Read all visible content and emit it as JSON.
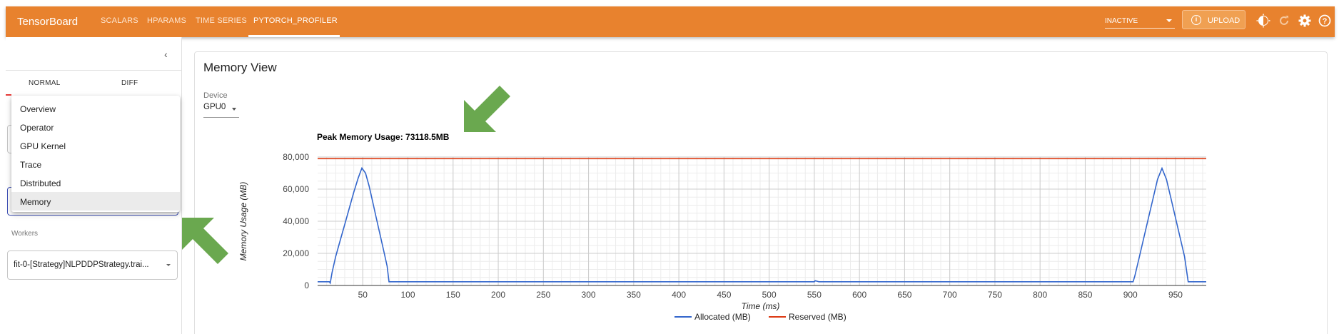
{
  "app": {
    "title": "TensorBoard",
    "tabs": [
      {
        "label": "SCALARS"
      },
      {
        "label": "HPARAMS"
      },
      {
        "label": "TIME SERIES"
      },
      {
        "label": "PYTORCH_PROFILER"
      }
    ],
    "run_status": "INACTIVE",
    "upload_label": "UPLOAD",
    "icons": [
      "theme-icon",
      "refresh-icon",
      "settings-icon",
      "help-icon"
    ]
  },
  "sidebar": {
    "mode_tabs": [
      {
        "label": "NORMAL"
      },
      {
        "label": "DIFF"
      }
    ],
    "views_dropdown": {
      "options": [
        {
          "label": "Overview"
        },
        {
          "label": "Operator"
        },
        {
          "label": "GPU Kernel"
        },
        {
          "label": "Trace"
        },
        {
          "label": "Distributed"
        },
        {
          "label": "Memory"
        }
      ],
      "selected": "Memory"
    },
    "workers_label": "Workers",
    "worker_value": "fit-0-[Strategy]NLPDDPStrategy.trai..."
  },
  "main": {
    "title": "Memory View",
    "device_label": "Device",
    "device_value": "GPU0"
  },
  "colors": {
    "accent": "#e8822e",
    "allocated": "#3366cc",
    "reserved": "#dc3912",
    "arrow": "#6aa84f"
  },
  "chart_data": {
    "type": "line",
    "title": "Peak Memory Usage: 73118.5MB",
    "xlabel": "Time (ms)",
    "ylabel": "Memory Usage (MB)",
    "xlim": [
      0,
      984
    ],
    "ylim": [
      0,
      80000
    ],
    "x_ticks": [
      50,
      100,
      150,
      200,
      250,
      300,
      350,
      400,
      450,
      500,
      550,
      600,
      650,
      700,
      750,
      800,
      850,
      900,
      950
    ],
    "y_ticks": [
      0,
      20000,
      40000,
      60000,
      80000
    ],
    "y_tick_labels": [
      "0",
      "20,000",
      "40,000",
      "60,000",
      "80,000"
    ],
    "grid": true,
    "legend": "bottom",
    "series": [
      {
        "name": "Allocated (MB)",
        "points": [
          [
            0,
            2300
          ],
          [
            13,
            2300
          ],
          [
            14,
            1500
          ],
          [
            16,
            8000
          ],
          [
            20,
            18000
          ],
          [
            25,
            28000
          ],
          [
            30,
            38000
          ],
          [
            35,
            48000
          ],
          [
            40,
            58000
          ],
          [
            45,
            67000
          ],
          [
            49,
            73118
          ],
          [
            53,
            70000
          ],
          [
            57,
            62000
          ],
          [
            61,
            52000
          ],
          [
            65,
            42000
          ],
          [
            69,
            32000
          ],
          [
            73,
            22000
          ],
          [
            77,
            12000
          ],
          [
            79,
            2300
          ],
          [
            520,
            2300
          ],
          [
            550,
            2300
          ],
          [
            551,
            3000
          ],
          [
            555,
            2300
          ],
          [
            903,
            2300
          ],
          [
            905,
            6000
          ],
          [
            910,
            18000
          ],
          [
            915,
            30000
          ],
          [
            920,
            42000
          ],
          [
            925,
            54000
          ],
          [
            930,
            66000
          ],
          [
            935,
            73000
          ],
          [
            940,
            66000
          ],
          [
            945,
            54000
          ],
          [
            950,
            42000
          ],
          [
            955,
            30000
          ],
          [
            960,
            18000
          ],
          [
            964,
            2300
          ],
          [
            984,
            2300
          ]
        ]
      },
      {
        "name": "Reserved (MB)",
        "points": [
          [
            0,
            79000
          ],
          [
            984,
            79000
          ]
        ]
      }
    ]
  }
}
